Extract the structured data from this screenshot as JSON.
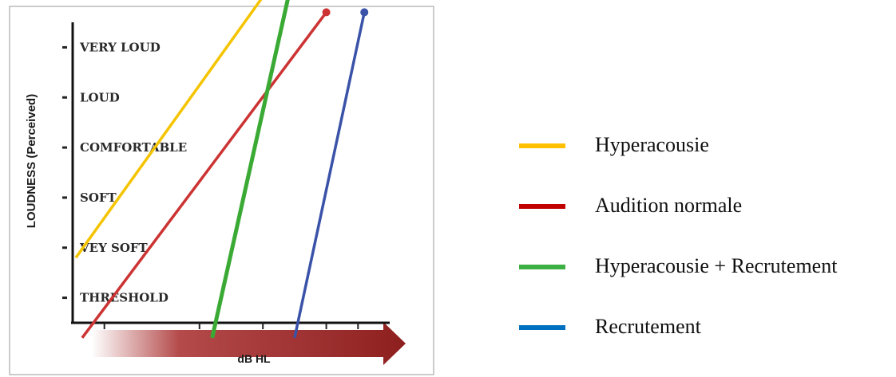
{
  "chart_data": {
    "type": "line",
    "ylabel": "LOUDNESS (Perceived)",
    "xlabel": "dB HL",
    "ylevels": [
      "THRESHOLD",
      "VEY SOFT",
      "SOFT",
      "COMFORTABLE",
      "LOUD",
      "VERY LOUD"
    ],
    "xlim": [
      0,
      10
    ],
    "ylim": [
      0.5,
      6.5
    ],
    "series": [
      {
        "name": "Hyperacousie",
        "color": "#f5c400",
        "x": [
          0.1,
          6.1
        ],
        "y": [
          1.8,
          7.1
        ],
        "endpoint_marker": false
      },
      {
        "name": "Audition normale",
        "color": "#cc3333",
        "x": [
          0.3,
          8.0
        ],
        "y": [
          0.2,
          6.7
        ],
        "endpoint_marker": true
      },
      {
        "name": "Hyperacousie + Recrutement",
        "color": "#3aaa35",
        "x": [
          4.4,
          6.8
        ],
        "y": [
          0.2,
          7.0
        ],
        "endpoint_marker": false
      },
      {
        "name": "Recrutement",
        "color": "#3a52a8",
        "x": [
          7.0,
          9.2
        ],
        "y": [
          0.2,
          6.7
        ],
        "endpoint_marker": true
      }
    ]
  },
  "legend": [
    {
      "label": "Hyperacousie",
      "color": "#ffc000"
    },
    {
      "label": "Audition normale",
      "color": "#c00000"
    },
    {
      "label": "Hyperacousie + Recrutement",
      "color": "#3cb043"
    },
    {
      "label": "Recrutement",
      "color": "#0070c0"
    }
  ]
}
